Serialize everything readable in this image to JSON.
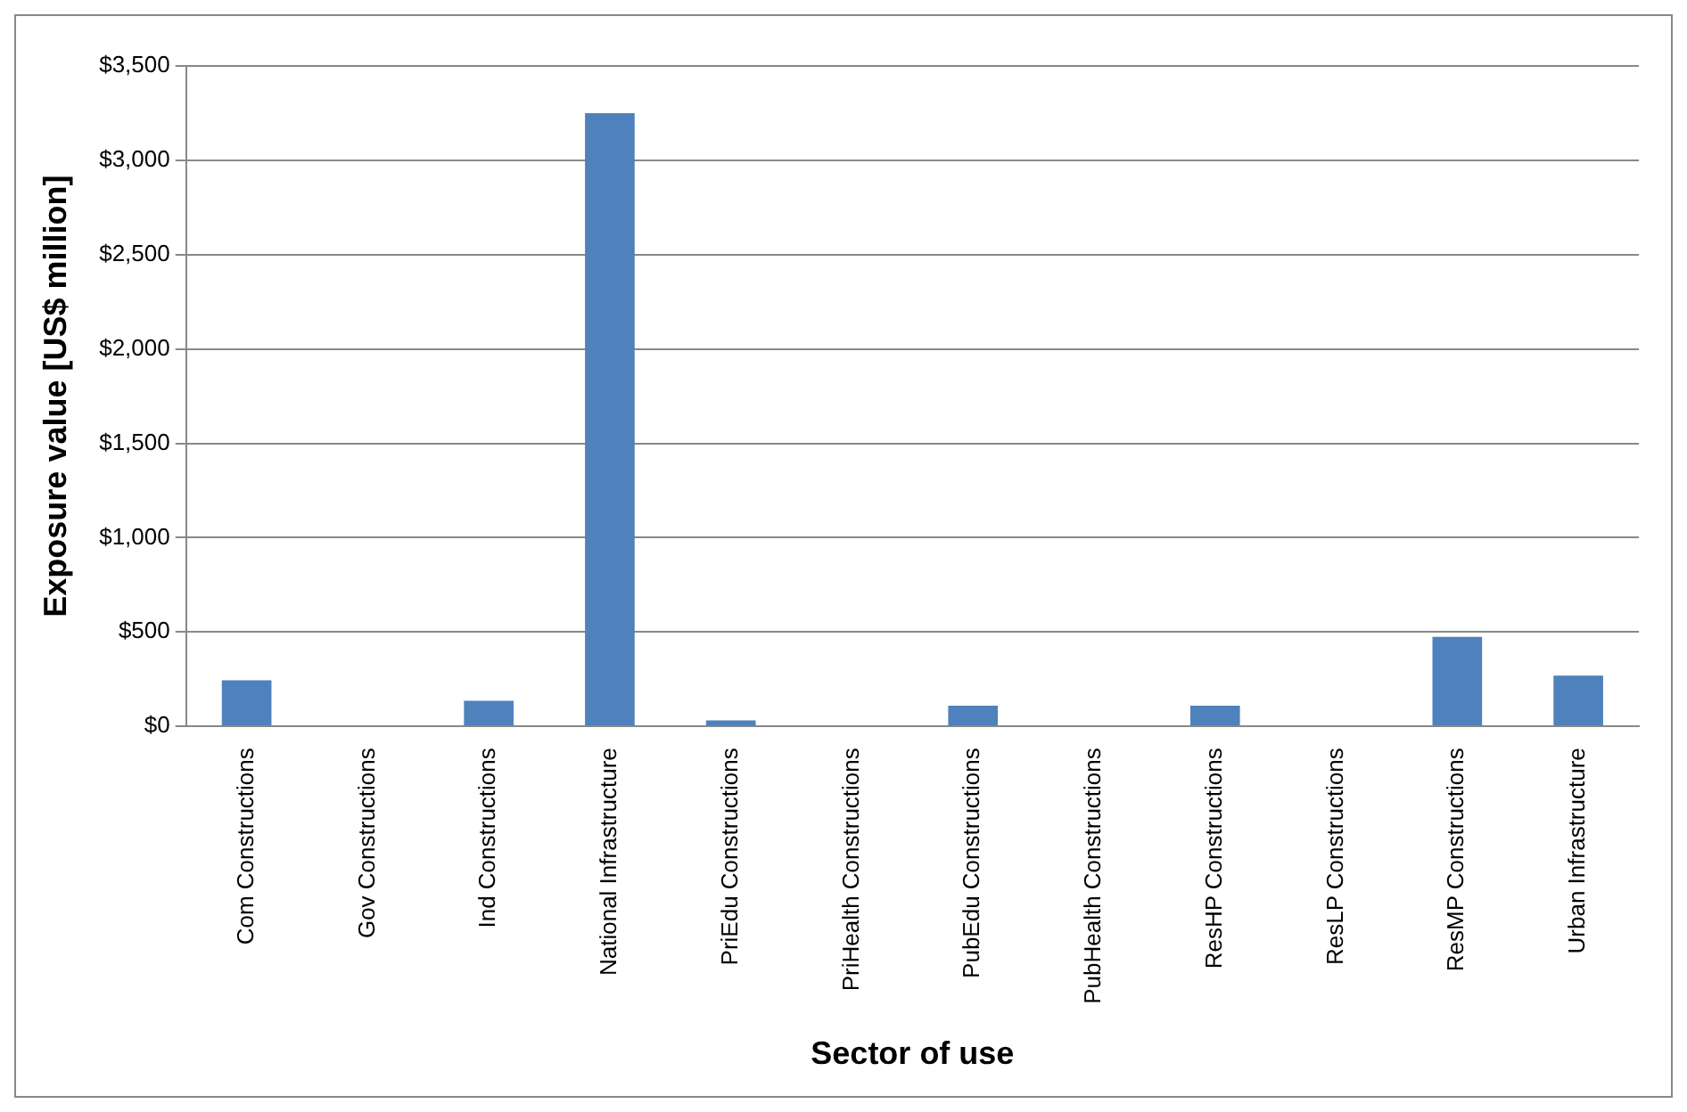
{
  "chart_data": {
    "type": "bar",
    "xlabel": "Sector of use",
    "ylabel": "Exposure value [US$ million]",
    "categories": [
      "Com Constructions",
      "Gov Constructions",
      "Ind Constructions",
      "National Infrastructure",
      "PriEdu Constructions",
      "PriHealth Constructions",
      "PubEdu Constructions",
      "PubHealth Constructions",
      "ResHP Constructions",
      "ResLP Constructions",
      "ResMP Constructions",
      "Urban Infrastructure"
    ],
    "values": [
      244,
      0,
      135,
      3250,
      32,
      0,
      109,
      0,
      109,
      0,
      474,
      269
    ],
    "color": "#4f81bd",
    "ylim": [
      0,
      3500
    ],
    "yticks": [
      {
        "value": 0,
        "label": "$0"
      },
      {
        "value": 500,
        "label": "$500"
      },
      {
        "value": 1000,
        "label": "$1,000"
      },
      {
        "value": 1500,
        "label": "$1,500"
      },
      {
        "value": 2000,
        "label": "$2,000"
      },
      {
        "value": 2500,
        "label": "$2,500"
      },
      {
        "value": 3000,
        "label": "$3,000"
      },
      {
        "value": 3500,
        "label": "$3,500"
      }
    ],
    "grid": "y",
    "legend": false
  }
}
